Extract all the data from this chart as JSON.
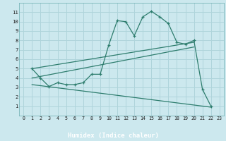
{
  "xlabel": "Humidex (Indice chaleur)",
  "bg_color": "#cce8ee",
  "grid_color": "#afd4db",
  "line_color": "#2e7d6e",
  "xbar_color": "#4a8a8a",
  "xlim": [
    -0.5,
    23.5
  ],
  "ylim": [
    0,
    12
  ],
  "xticks": [
    0,
    1,
    2,
    3,
    4,
    5,
    6,
    7,
    8,
    9,
    10,
    11,
    12,
    13,
    14,
    15,
    16,
    17,
    18,
    19,
    20,
    21,
    22,
    23
  ],
  "yticks": [
    1,
    2,
    3,
    4,
    5,
    6,
    7,
    8,
    9,
    10,
    11
  ],
  "line1_x": [
    1,
    2,
    3,
    4,
    5,
    6,
    7,
    8,
    9,
    10,
    11,
    12,
    13,
    14,
    15,
    16,
    17,
    18,
    19,
    20,
    21,
    22
  ],
  "line1_y": [
    5.0,
    4.0,
    3.1,
    3.5,
    3.3,
    3.3,
    3.5,
    4.4,
    4.4,
    7.5,
    10.1,
    10.0,
    8.5,
    10.5,
    11.1,
    10.5,
    9.8,
    7.8,
    7.6,
    8.0,
    2.8,
    1.0
  ],
  "line2_x": [
    1,
    20
  ],
  "line2_y": [
    5.0,
    7.8
  ],
  "line3_x": [
    1,
    20
  ],
  "line3_y": [
    4.0,
    7.3
  ],
  "line4_x": [
    1,
    22
  ],
  "line4_y": [
    3.3,
    0.9
  ]
}
